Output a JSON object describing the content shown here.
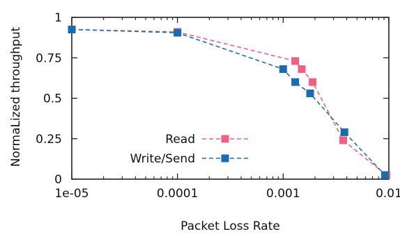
{
  "chart_data": {
    "type": "line",
    "xscale": "log",
    "xlim": [
      1e-05,
      0.01
    ],
    "ylim": [
      0,
      1
    ],
    "xlabel": "Packet Loss Rate",
    "ylabel": "NormaLized throughput",
    "x_ticks": [
      {
        "value": 1e-05,
        "label": "1e-05"
      },
      {
        "value": 0.0001,
        "label": "0.0001"
      },
      {
        "value": 0.001,
        "label": "0.001"
      },
      {
        "value": 0.01,
        "label": "0.01"
      }
    ],
    "y_ticks": [
      {
        "value": 0,
        "label": "0"
      },
      {
        "value": 0.25,
        "label": "0.25"
      },
      {
        "value": 0.5,
        "label": "0.5"
      },
      {
        "value": 0.75,
        "label": "0.75"
      },
      {
        "value": 1,
        "label": "1"
      }
    ],
    "legend_position": "center-left",
    "series": [
      {
        "name": "Read",
        "color": "#f06080",
        "marker": "square",
        "line": "dashed",
        "x": [
          1e-05,
          0.0001,
          0.0013,
          0.0015,
          0.0019,
          0.0037,
          0.0095
        ],
        "y": [
          0.925,
          0.91,
          0.73,
          0.68,
          0.6,
          0.24,
          0.025
        ]
      },
      {
        "name": "Write/Send",
        "color": "#1a6bb0",
        "marker": "square",
        "line": "dashed",
        "x": [
          1e-05,
          0.0001,
          0.001,
          0.0013,
          0.0018,
          0.0038,
          0.0092
        ],
        "y": [
          0.925,
          0.905,
          0.68,
          0.6,
          0.53,
          0.29,
          0.025
        ]
      }
    ]
  }
}
